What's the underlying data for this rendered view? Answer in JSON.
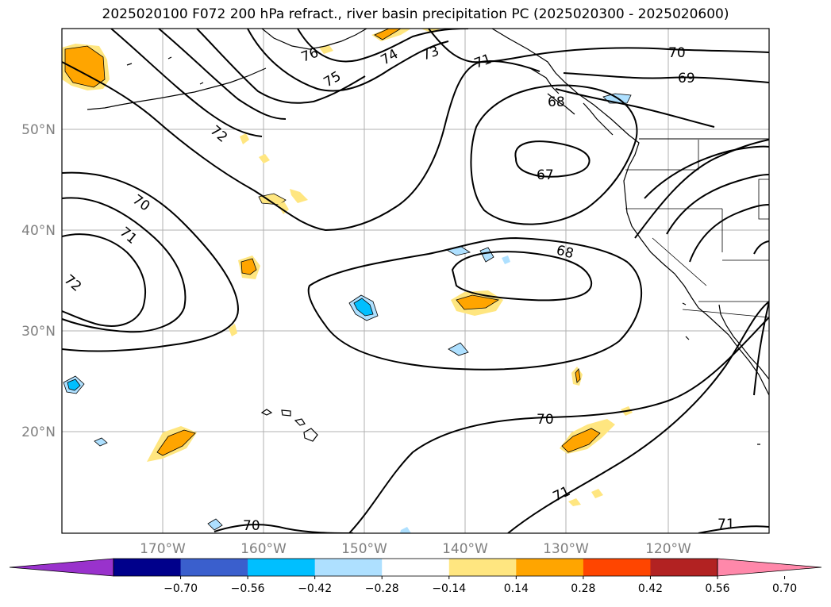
{
  "title": "2025020100 F072 200 hPa refract., river basin precipitation PC (2025020300 - 2025020600)",
  "colors": {
    "land_line": "#000000",
    "grid": "#b0b0b0",
    "contour": "#000000",
    "positive_light": "#ffe680",
    "positive_mid": "#ffa500",
    "negative_light": "#aee0ff",
    "negative_mid": "#00bfff"
  },
  "axes": {
    "lat_labels": [
      "50°N",
      "40°N",
      "30°N",
      "20°N"
    ],
    "lon_labels": [
      "170°W",
      "160°W",
      "150°W",
      "140°W",
      "130°W",
      "120°W"
    ]
  },
  "contour_labels": [
    "76",
    "75",
    "74",
    "73",
    "71",
    "70",
    "69",
    "68",
    "67",
    "72",
    "70",
    "71",
    "72",
    "68",
    "70",
    "71",
    "70",
    "71"
  ],
  "colorbar": {
    "colors": [
      "#9932cc",
      "#00008b",
      "#3a5fcd",
      "#00bfff",
      "#aee0ff",
      "#ffffff",
      "#ffe680",
      "#ffa500",
      "#ff4500",
      "#b22222",
      "#ff88aa"
    ],
    "tick_labels": [
      "−0.70",
      "−0.56",
      "−0.42",
      "−0.28",
      "−0.14",
      "0.14",
      "0.28",
      "0.42",
      "0.56",
      "0.70"
    ]
  }
}
